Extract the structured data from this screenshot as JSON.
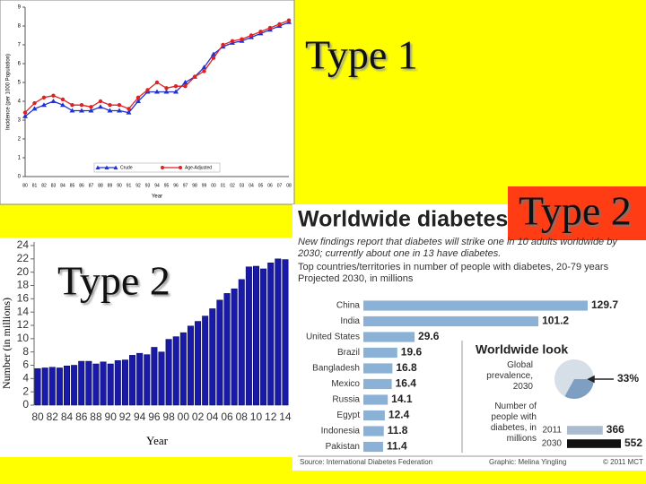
{
  "slide": {
    "labels": [
      "Type 1",
      "Type 2",
      "Type 2"
    ]
  },
  "chart_data": [
    {
      "type": "line",
      "y_label": "Incidence (per 1000 Population)",
      "x_label": "Year",
      "categories": [
        "80",
        "81",
        "82",
        "83",
        "84",
        "85",
        "86",
        "87",
        "88",
        "89",
        "90",
        "91",
        "92",
        "93",
        "94",
        "95",
        "96",
        "97",
        "98",
        "99",
        "00",
        "01",
        "02",
        "03",
        "04",
        "05",
        "06",
        "07",
        "08"
      ],
      "series": [
        {
          "name": "Crude",
          "color": "#2233cc",
          "marker": "triangle",
          "values": [
            3.2,
            3.6,
            3.8,
            4.0,
            3.8,
            3.5,
            3.5,
            3.5,
            3.7,
            3.5,
            3.5,
            3.4,
            4.0,
            4.5,
            4.5,
            4.5,
            4.5,
            5.0,
            5.3,
            5.8,
            6.5,
            6.9,
            7.1,
            7.2,
            7.4,
            7.6,
            7.8,
            8.0,
            8.2
          ]
        },
        {
          "name": "Age-Adjusted",
          "color": "#dd2222",
          "marker": "circle",
          "values": [
            3.4,
            3.9,
            4.2,
            4.3,
            4.1,
            3.8,
            3.8,
            3.7,
            4.0,
            3.8,
            3.8,
            3.6,
            4.2,
            4.6,
            5.0,
            4.7,
            4.8,
            4.8,
            5.3,
            5.6,
            6.3,
            7.0,
            7.2,
            7.3,
            7.5,
            7.7,
            7.9,
            8.1,
            8.3
          ]
        }
      ],
      "ylim": [
        0,
        9
      ],
      "yticks": [
        0,
        1,
        2,
        3,
        4,
        5,
        6,
        7,
        8,
        9
      ],
      "legend": "bottom"
    },
    {
      "type": "bar",
      "y_label": "Number (in millions)",
      "x_label": "Year",
      "categories": [
        "80",
        null,
        "82",
        null,
        "84",
        null,
        "86",
        null,
        "88",
        null,
        "90",
        null,
        "92",
        null,
        "94",
        null,
        "96",
        null,
        "98",
        null,
        "00",
        null,
        "02",
        null,
        "04",
        null,
        "06",
        null,
        "08",
        null,
        "10",
        null,
        "12",
        null,
        "14"
      ],
      "values": [
        5.5,
        5.6,
        5.7,
        5.6,
        5.9,
        6.0,
        6.6,
        6.6,
        6.2,
        6.5,
        6.2,
        6.7,
        6.8,
        7.5,
        7.8,
        7.6,
        8.7,
        8.0,
        9.9,
        10.3,
        10.9,
        11.9,
        12.6,
        13.4,
        14.5,
        15.8,
        16.8,
        17.5,
        18.9,
        20.8,
        20.9,
        20.5,
        21.4,
        22.0,
        21.9
      ],
      "color": "#1a1aa8",
      "ylim": [
        0,
        24
      ],
      "yticks": [
        0,
        2,
        4,
        6,
        8,
        10,
        12,
        14,
        16,
        18,
        20,
        22,
        24
      ]
    },
    {
      "type": "hbar",
      "title": "Worldwide diabetes",
      "subtitle": "New findings report that diabetes will strike one in 10 adults worldwide by 2030; currently about one in 13 have diabetes.",
      "caption": "Top countries/territories in number of people with diabetes, 20-79 years Projected 2030, in millions",
      "categories": [
        "China",
        "India",
        "United States",
        "Brazil",
        "Bangladesh",
        "Mexico",
        "Russia",
        "Egypt",
        "Indonesia",
        "Pakistan"
      ],
      "values": [
        129.7,
        101.2,
        29.6,
        19.6,
        16.8,
        16.4,
        14.1,
        12.4,
        11.8,
        11.4
      ],
      "color": "#8bb2d6",
      "source": "Source: International Diabetes Federation",
      "credit": "Graphic: Melina Yingling",
      "copyright": "© 2011 MCT"
    },
    {
      "type": "pie",
      "title": "Worldwide look",
      "label": "Global prevalence, 2030",
      "values": [
        33
      ],
      "value_labels": [
        "33%"
      ],
      "color": "#7e9fc2"
    },
    {
      "type": "hbar",
      "title": "Number of people with diabetes, in millions",
      "categories": [
        "2011",
        "2030"
      ],
      "values": [
        366,
        552
      ],
      "colors": [
        "#aabbd0",
        "#111111"
      ]
    }
  ]
}
